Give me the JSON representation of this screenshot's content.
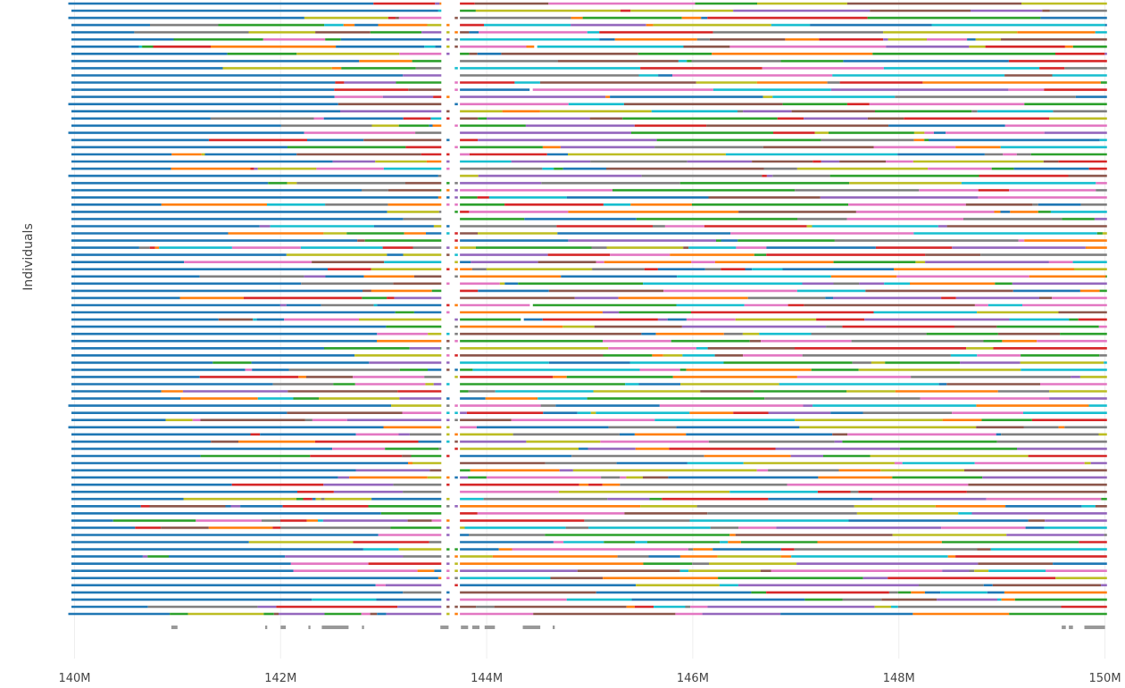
{
  "chart_data": {
    "type": "haplotype-segments",
    "ylabel": "Individuals",
    "xlabel": "",
    "xlim": [
      139.97,
      150.03
    ],
    "x_unit": "Mb",
    "x_ticks": [
      {
        "value": 140,
        "label": "140M"
      },
      {
        "value": 142,
        "label": "142M"
      },
      {
        "value": 144,
        "label": "144M"
      },
      {
        "value": 146,
        "label": "146M"
      },
      {
        "value": 148,
        "label": "148M"
      },
      {
        "value": 150,
        "label": "150M"
      }
    ],
    "grid": true,
    "n_individuals": 86,
    "main_gap": [
      143.58,
      143.74
    ],
    "coverage_blocks": [
      [
        140.94,
        141.0
      ],
      [
        141.85,
        141.87
      ],
      [
        142.0,
        142.05
      ],
      [
        142.27,
        142.29
      ],
      [
        142.4,
        142.66
      ],
      [
        142.79,
        142.81
      ],
      [
        143.55,
        143.63
      ],
      [
        143.75,
        143.82
      ],
      [
        143.86,
        143.93
      ],
      [
        143.98,
        144.08
      ],
      [
        144.35,
        144.52
      ],
      [
        144.64,
        144.66
      ],
      [
        149.58,
        149.62
      ],
      [
        149.65,
        149.69
      ],
      [
        149.8,
        150.0
      ]
    ],
    "colors": {
      "blue": "#1f77b4",
      "orange": "#ff7f0e",
      "green": "#2ca02c",
      "red": "#d62728",
      "purple": "#9467bd",
      "brown": "#8c564b",
      "pink": "#e377c2",
      "gray": "#7f7f7f",
      "olive": "#bcbd22",
      "cyan": "#17becf"
    },
    "palette_order": [
      "blue",
      "orange",
      "green",
      "red",
      "purple",
      "brown",
      "pink",
      "gray",
      "olive",
      "cyan"
    ],
    "left_color": "blue",
    "coverage_color": "#999999",
    "grid_color": "#eeeeee"
  }
}
